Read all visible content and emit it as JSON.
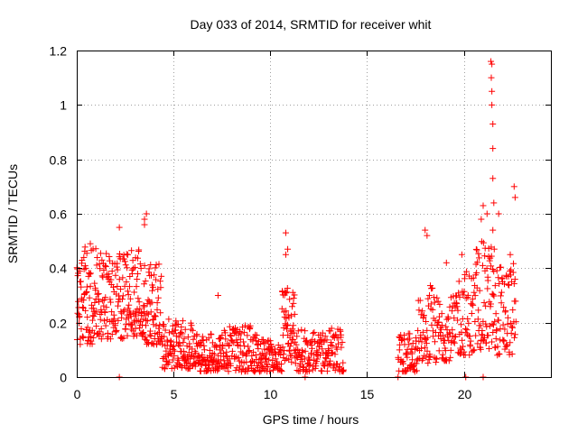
{
  "chart_data": {
    "type": "scatter",
    "title": "Day 033 of 2014, SRMTID for receiver whit",
    "xlabel": "GPS time / hours",
    "ylabel": "SRMTID / TECUs",
    "xlim": [
      0,
      24.5
    ],
    "ylim": [
      0,
      1.2
    ],
    "x_ticks": [
      0,
      5,
      10,
      15,
      20
    ],
    "y_ticks": [
      0,
      0.2,
      0.4,
      0.6,
      0.8,
      1,
      1.2
    ],
    "x_tick_labels": [
      "0",
      "5",
      "10",
      "15",
      "20"
    ],
    "y_tick_labels": [
      "0",
      "0.2",
      "0.4",
      "0.6",
      "0.8",
      "1",
      "1.2"
    ],
    "grid": true,
    "marker": "+",
    "color": "#ff0000",
    "gap_hours": [
      13.8,
      16.6
    ],
    "segments": [
      {
        "x0": 0.0,
        "x1": 1.0,
        "low": 0.12,
        "high": 0.48,
        "count": 80
      },
      {
        "x0": 1.0,
        "x1": 2.5,
        "low": 0.14,
        "high": 0.46,
        "count": 110
      },
      {
        "x0": 2.5,
        "x1": 3.5,
        "low": 0.15,
        "high": 0.48,
        "count": 80
      },
      {
        "x0": 3.5,
        "x1": 4.4,
        "low": 0.12,
        "high": 0.42,
        "count": 70
      },
      {
        "x0": 4.4,
        "x1": 6.0,
        "low": 0.03,
        "high": 0.22,
        "count": 110
      },
      {
        "x0": 6.0,
        "x1": 7.6,
        "low": 0.02,
        "high": 0.16,
        "count": 110
      },
      {
        "x0": 7.6,
        "x1": 9.5,
        "low": 0.02,
        "high": 0.19,
        "count": 120
      },
      {
        "x0": 9.5,
        "x1": 10.6,
        "low": 0.02,
        "high": 0.14,
        "count": 70
      },
      {
        "x0": 10.6,
        "x1": 11.3,
        "low": 0.05,
        "high": 0.34,
        "count": 60
      },
      {
        "x0": 11.3,
        "x1": 13.8,
        "low": 0.02,
        "high": 0.18,
        "count": 150
      },
      {
        "x0": 16.6,
        "x1": 17.6,
        "low": 0.02,
        "high": 0.16,
        "count": 60
      },
      {
        "x0": 17.6,
        "x1": 18.6,
        "low": 0.05,
        "high": 0.34,
        "count": 60
      },
      {
        "x0": 18.6,
        "x1": 19.6,
        "low": 0.06,
        "high": 0.3,
        "count": 60
      },
      {
        "x0": 19.6,
        "x1": 20.6,
        "low": 0.08,
        "high": 0.4,
        "count": 60
      },
      {
        "x0": 20.6,
        "x1": 21.6,
        "low": 0.1,
        "high": 0.5,
        "count": 70
      },
      {
        "x0": 21.6,
        "x1": 22.7,
        "low": 0.08,
        "high": 0.42,
        "count": 70
      }
    ],
    "notable_points": [
      {
        "x": 0.7,
        "y": 0.49
      },
      {
        "x": 2.2,
        "y": 0.55
      },
      {
        "x": 3.5,
        "y": 0.58
      },
      {
        "x": 3.6,
        "y": 0.6
      },
      {
        "x": 3.5,
        "y": 0.56
      },
      {
        "x": 2.2,
        "y": 0.0
      },
      {
        "x": 7.3,
        "y": 0.3
      },
      {
        "x": 10.8,
        "y": 0.53
      },
      {
        "x": 10.9,
        "y": 0.47
      },
      {
        "x": 10.8,
        "y": 0.45
      },
      {
        "x": 11.8,
        "y": 0.0
      },
      {
        "x": 16.6,
        "y": 0.0
      },
      {
        "x": 18.0,
        "y": 0.54
      },
      {
        "x": 18.1,
        "y": 0.52
      },
      {
        "x": 19.1,
        "y": 0.42
      },
      {
        "x": 19.9,
        "y": 0.45
      },
      {
        "x": 20.1,
        "y": 0.0
      },
      {
        "x": 20.9,
        "y": 0.58
      },
      {
        "x": 21.0,
        "y": 0.63
      },
      {
        "x": 21.0,
        "y": 0.0
      },
      {
        "x": 21.2,
        "y": 0.6
      },
      {
        "x": 21.4,
        "y": 1.16
      },
      {
        "x": 21.45,
        "y": 1.15
      },
      {
        "x": 21.42,
        "y": 1.1
      },
      {
        "x": 21.45,
        "y": 1.05
      },
      {
        "x": 21.45,
        "y": 1.0
      },
      {
        "x": 21.5,
        "y": 0.93
      },
      {
        "x": 21.5,
        "y": 0.84
      },
      {
        "x": 21.5,
        "y": 0.73
      },
      {
        "x": 21.55,
        "y": 0.64
      },
      {
        "x": 21.5,
        "y": 0.54
      },
      {
        "x": 22.6,
        "y": 0.7
      },
      {
        "x": 22.65,
        "y": 0.66
      },
      {
        "x": 22.4,
        "y": 0.45
      },
      {
        "x": 21.8,
        "y": 0.6
      }
    ]
  }
}
